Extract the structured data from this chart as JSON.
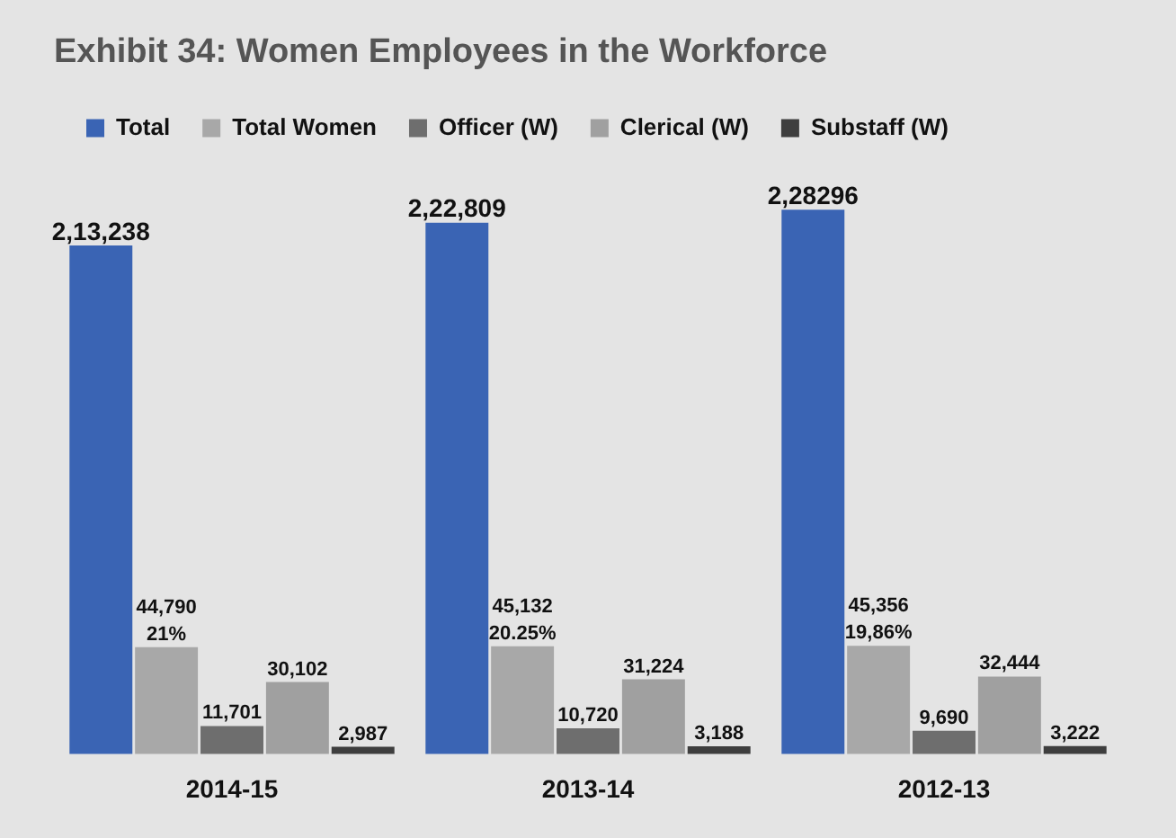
{
  "chart_data": {
    "type": "bar",
    "title": "Exhibit 34: Women Employees in the Workforce",
    "categories": [
      "2014-15",
      "2013-14",
      "2012-13"
    ],
    "series": [
      {
        "name": "Total",
        "color": "#3a64b4",
        "values": [
          213238,
          222809,
          228296
        ],
        "value_labels": [
          "2,13,238",
          "2,22,809",
          "2,28296"
        ]
      },
      {
        "name": "Total Women",
        "color": "#a8a8a8",
        "values": [
          44790,
          45132,
          45356
        ],
        "value_labels": [
          "44,790\n21%",
          "45,132\n20.25%",
          "45,356\n19,86%"
        ]
      },
      {
        "name": "Officer (W)",
        "color": "#6e6e6e",
        "values": [
          11701,
          10720,
          9690
        ],
        "value_labels": [
          "11,701",
          "10,720",
          "9,690"
        ]
      },
      {
        "name": "Clerical (W)",
        "color": "#a0a0a0",
        "values": [
          30102,
          31224,
          32444
        ],
        "value_labels": [
          "30,102",
          "31,224",
          "32,444"
        ]
      },
      {
        "name": "Substaff (W)",
        "color": "#3e3e3e",
        "values": [
          2987,
          3188,
          3222
        ],
        "value_labels": [
          "2,987",
          "3,188",
          "3,222"
        ]
      }
    ],
    "legend": "top left",
    "grid": false
  }
}
